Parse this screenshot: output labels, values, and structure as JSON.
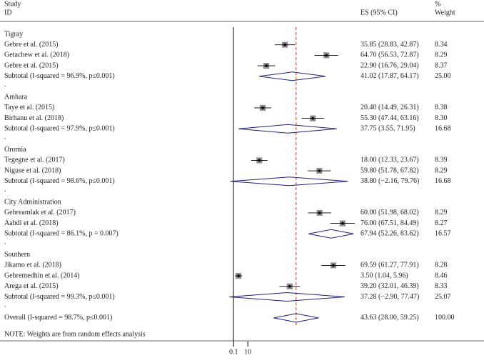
{
  "chart_data": {
    "type": "forest",
    "headers": {
      "study": "Study",
      "id": "ID",
      "es": "ES (95% CI)",
      "pct": "%",
      "weight": "Weight"
    },
    "xlim": [
      -3.5,
      85
    ],
    "xticks": [
      0.1,
      10
    ],
    "null_line": 0,
    "colors": {
      "box": "#8c8c8c",
      "line": "#000000",
      "diamond": "#1f1f7a",
      "reference": "#c0392b"
    },
    "groups": [
      {
        "name": "Tigray",
        "studies": [
          {
            "label": "Gebre et al. (2015)",
            "es": 35.85,
            "lo": 28.83,
            "hi": 42.87,
            "ci_label": "35.85 (28.83, 42.87)",
            "weight": 8.34
          },
          {
            "label": "Getachew et al. (2018)",
            "es": 64.7,
            "lo": 56.53,
            "hi": 72.87,
            "ci_label": "64.70 (56.53, 72.87)",
            "weight": 8.29
          },
          {
            "label": "Gebre et al. (2015)",
            "es": 22.9,
            "lo": 16.76,
            "hi": 29.04,
            "ci_label": "22.90 (16.76, 29.04)",
            "weight": 8.37
          }
        ],
        "subtotal": {
          "label": "Subtotal (I-squared = 96.9%, p≤0.001)",
          "es": 41.02,
          "lo": 17.87,
          "hi": 64.17,
          "ci_label": "41.02 (17.87, 64.17)",
          "weight": 25,
          "weight_label": "25.00"
        },
        "separator": "."
      },
      {
        "name": "Amhara",
        "studies": [
          {
            "label": "Taye et al. (2015)",
            "es": 20.4,
            "lo": 14.49,
            "hi": 26.31,
            "ci_label": "20.40 (14.49, 26.31)",
            "weight": 8.38
          },
          {
            "label": "Birhanu et al. (2018)",
            "es": 55.3,
            "lo": 47.44,
            "hi": 63.16,
            "ci_label": "55.30 (47.44, 63.16)",
            "weight": 8.3,
            "weight_label": "8.30"
          }
        ],
        "subtotal": {
          "label": "Subtotal (I-squared = 97.9%, p≤0.001)",
          "es": 37.75,
          "lo": 3.55,
          "hi": 71.95,
          "ci_label": "37.75 (3.55, 71.95)",
          "weight": 16.68
        },
        "separator": "."
      },
      {
        "name": "Oromia",
        "studies": [
          {
            "label": "Tegegne et al. (2017)",
            "es": 18.0,
            "lo": 12.33,
            "hi": 23.67,
            "ci_label": "18.00 (12.33, 23.67)",
            "weight": 8.39
          },
          {
            "label": "Niguse et al. (2018)",
            "es": 59.8,
            "lo": 51.78,
            "hi": 67.82,
            "ci_label": "59.80 (51.78, 67.82)",
            "weight": 8.29
          }
        ],
        "subtotal": {
          "label": "Subtotal (I-squared = 98.6%, p≤0.001)",
          "es": 38.8,
          "lo": -2.16,
          "hi": 79.76,
          "ci_label": "38.80 (−2.16, 79.76)",
          "weight": 16.68
        },
        "separator": "."
      },
      {
        "name": "City Administration",
        "studies": [
          {
            "label": "Gebreamlak et al. (2017)",
            "es": 60.0,
            "lo": 51.98,
            "hi": 68.02,
            "ci_label": "60.00 (51.98, 68.02)",
            "weight": 8.29
          },
          {
            "label": "Aabdi et al. (2018)",
            "es": 76.0,
            "lo": 67.51,
            "hi": 84.49,
            "ci_label": "76.00 (67.51, 84.49)",
            "weight": 8.27
          }
        ],
        "subtotal": {
          "label": "Subtotal (I-squared = 86.1%, p = 0.007)",
          "es": 67.94,
          "lo": 52.26,
          "hi": 83.62,
          "ci_label": "67.94 (52.26, 83.62)",
          "weight": 16.57
        },
        "separator": "."
      },
      {
        "name": "Southern",
        "studies": [
          {
            "label": "Jikamo et al. (2018)",
            "es": 69.59,
            "lo": 61.27,
            "hi": 77.91,
            "ci_label": "69.59 (61.27, 77.91)",
            "weight": 8.28
          },
          {
            "label": "Gebremedhin et al. (2014)",
            "es": 3.5,
            "lo": 1.04,
            "hi": 5.96,
            "ci_label": "3.50 (1.04, 5.96)",
            "weight": 8.46
          },
          {
            "label": "Arega et al. (2015)",
            "es": 39.2,
            "lo": 32.01,
            "hi": 46.39,
            "ci_label": "39.20 (32.01, 46.39)",
            "weight": 8.33
          }
        ],
        "subtotal": {
          "label": "Subtotal (I-squared = 99.3%, p≤0.001)",
          "es": 37.28,
          "lo": -2.9,
          "hi": 77.47,
          "ci_label": "37.28 (−2.90, 77.47)",
          "weight": 25.07
        },
        "separator": "."
      }
    ],
    "overall": {
      "label": "Overall (I-squared = 98.7%, p≤0.001)",
      "es": 43.63,
      "lo": 28.0,
      "hi": 59.25,
      "ci_label": "43.63 (28.00, 59.25)",
      "weight": 100,
      "weight_label": "100.00"
    },
    "note": "NOTE: Weights are from random effects analysis"
  }
}
